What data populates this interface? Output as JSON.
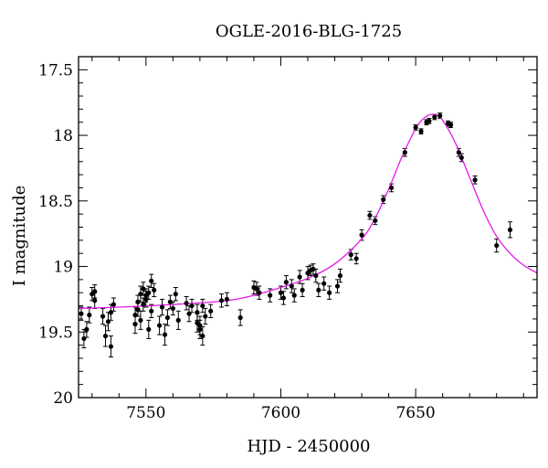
{
  "chart_data": {
    "type": "scatter",
    "title": "OGLE-2016-BLG-1725",
    "xlabel": "HJD - 2450000",
    "ylabel": "I magnitude",
    "xlim": [
      7525,
      7695
    ],
    "ylim": [
      20.0,
      17.4
    ],
    "y_inverted": true,
    "xticks": [
      7550,
      7600,
      7650
    ],
    "yticks": [
      17.5,
      18,
      18.5,
      19,
      19.5,
      20
    ],
    "ytick_labels": [
      "17.5",
      "18",
      "18.5",
      "19",
      "19.5",
      "20"
    ],
    "grid": false,
    "legend": "none",
    "colors": {
      "points": "#000000",
      "model": "#e619e6",
      "frame": "#000000"
    },
    "model_curve": {
      "name": "",
      "x": [
        7525,
        7540,
        7560,
        7580,
        7590,
        7600,
        7610,
        7620,
        7630,
        7635,
        7640,
        7645,
        7650,
        7653,
        7656,
        7659,
        7662,
        7665,
        7670,
        7675,
        7680,
        7685,
        7690,
        7695
      ],
      "y": [
        19.32,
        19.31,
        19.29,
        19.26,
        19.22,
        19.16,
        19.09,
        18.98,
        18.79,
        18.63,
        18.41,
        18.16,
        17.95,
        17.87,
        17.84,
        17.86,
        17.95,
        18.07,
        18.32,
        18.57,
        18.77,
        18.9,
        18.99,
        19.05
      ]
    },
    "series": [
      {
        "name": "",
        "points": [
          [
            7526,
            19.36,
            0.05
          ],
          [
            7527,
            19.55,
            0.07
          ],
          [
            7528,
            19.48,
            0.06
          ],
          [
            7529,
            19.37,
            0.06
          ],
          [
            7530,
            19.21,
            0.05
          ],
          [
            7531,
            19.19,
            0.05
          ],
          [
            7531,
            19.26,
            0.06
          ],
          [
            7534,
            19.38,
            0.06
          ],
          [
            7535,
            19.53,
            0.08
          ],
          [
            7536,
            19.42,
            0.07
          ],
          [
            7537,
            19.35,
            0.06
          ],
          [
            7537,
            19.61,
            0.08
          ],
          [
            7538,
            19.29,
            0.05
          ],
          [
            7546,
            19.44,
            0.07
          ],
          [
            7546,
            19.37,
            0.06
          ],
          [
            7547,
            19.33,
            0.05
          ],
          [
            7547,
            19.27,
            0.05
          ],
          [
            7548,
            19.21,
            0.06
          ],
          [
            7548,
            19.41,
            0.07
          ],
          [
            7549,
            19.17,
            0.05
          ],
          [
            7549,
            19.29,
            0.05
          ],
          [
            7550,
            19.25,
            0.06
          ],
          [
            7550,
            19.22,
            0.05
          ],
          [
            7551,
            19.2,
            0.05
          ],
          [
            7551,
            19.48,
            0.07
          ],
          [
            7552,
            19.34,
            0.05
          ],
          [
            7552,
            19.11,
            0.05
          ],
          [
            7553,
            19.18,
            0.05
          ],
          [
            7555,
            19.45,
            0.07
          ],
          [
            7556,
            19.31,
            0.06
          ],
          [
            7557,
            19.52,
            0.08
          ],
          [
            7558,
            19.39,
            0.06
          ],
          [
            7559,
            19.27,
            0.05
          ],
          [
            7560,
            19.32,
            0.05
          ],
          [
            7561,
            19.21,
            0.05
          ],
          [
            7562,
            19.41,
            0.07
          ],
          [
            7565,
            19.28,
            0.05
          ],
          [
            7566,
            19.36,
            0.06
          ],
          [
            7567,
            19.3,
            0.05
          ],
          [
            7569,
            19.35,
            0.06
          ],
          [
            7569,
            19.43,
            0.07
          ],
          [
            7570,
            19.45,
            0.07
          ],
          [
            7570,
            19.48,
            0.07
          ],
          [
            7571,
            19.3,
            0.05
          ],
          [
            7571,
            19.53,
            0.07
          ],
          [
            7572,
            19.38,
            0.06
          ],
          [
            7574,
            19.34,
            0.05
          ],
          [
            7578,
            19.26,
            0.05
          ],
          [
            7580,
            19.25,
            0.05
          ],
          [
            7585,
            19.39,
            0.06
          ],
          [
            7590,
            19.16,
            0.05
          ],
          [
            7591,
            19.17,
            0.05
          ],
          [
            7592,
            19.2,
            0.05
          ],
          [
            7596,
            19.22,
            0.05
          ],
          [
            7600,
            19.2,
            0.05
          ],
          [
            7601,
            19.24,
            0.05
          ],
          [
            7602,
            19.12,
            0.05
          ],
          [
            7604,
            19.15,
            0.05
          ],
          [
            7605,
            19.22,
            0.05
          ],
          [
            7607,
            19.08,
            0.05
          ],
          [
            7608,
            19.18,
            0.05
          ],
          [
            7610,
            19.05,
            0.05
          ],
          [
            7611,
            19.03,
            0.04
          ],
          [
            7612,
            19.02,
            0.04
          ],
          [
            7613,
            19.07,
            0.05
          ],
          [
            7614,
            19.18,
            0.05
          ],
          [
            7616,
            19.13,
            0.05
          ],
          [
            7618,
            19.2,
            0.05
          ],
          [
            7621,
            19.15,
            0.05
          ],
          [
            7622,
            19.07,
            0.05
          ],
          [
            7626,
            18.91,
            0.04
          ],
          [
            7628,
            18.94,
            0.04
          ],
          [
            7630,
            18.76,
            0.04
          ],
          [
            7633,
            18.61,
            0.03
          ],
          [
            7635,
            18.65,
            0.03
          ],
          [
            7638,
            18.49,
            0.03
          ],
          [
            7641,
            18.4,
            0.03
          ],
          [
            7646,
            18.13,
            0.03
          ],
          [
            7650,
            17.94,
            0.02
          ],
          [
            7652,
            17.97,
            0.02
          ],
          [
            7654,
            17.9,
            0.02
          ],
          [
            7655,
            17.89,
            0.02
          ],
          [
            7657,
            17.86,
            0.02
          ],
          [
            7659,
            17.85,
            0.02
          ],
          [
            7662,
            17.91,
            0.02
          ],
          [
            7663,
            17.92,
            0.02
          ],
          [
            7666,
            18.13,
            0.03
          ],
          [
            7667,
            18.17,
            0.03
          ],
          [
            7672,
            18.34,
            0.03
          ],
          [
            7680,
            18.84,
            0.05
          ],
          [
            7685,
            18.72,
            0.06
          ]
        ]
      }
    ]
  }
}
